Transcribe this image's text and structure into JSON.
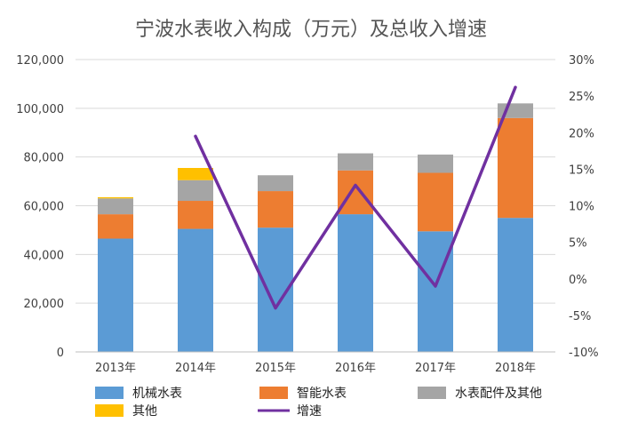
{
  "chart_data": {
    "type": "bar",
    "title": "宁波水表收入构成（万元）及总收入增速",
    "categories": [
      "2013年",
      "2014年",
      "2015年",
      "2016年",
      "2017年",
      "2018年"
    ],
    "series": [
      {
        "name": "机械水表",
        "kind": "stacked-bar",
        "axis": "left",
        "color": "#5B9BD5",
        "values": [
          46500,
          50500,
          51000,
          56500,
          49500,
          55000
        ]
      },
      {
        "name": "智能水表",
        "kind": "stacked-bar",
        "axis": "left",
        "color": "#ED7D31",
        "values": [
          10000,
          11500,
          15000,
          18000,
          24000,
          41000
        ]
      },
      {
        "name": "水表配件及其他",
        "kind": "stacked-bar",
        "axis": "left",
        "color": "#A5A5A5",
        "values": [
          6500,
          8500,
          6500,
          7000,
          7500,
          6000
        ]
      },
      {
        "name": "其他",
        "kind": "stacked-bar",
        "axis": "left",
        "color": "#FFC000",
        "values": [
          500,
          5000,
          0,
          0,
          0,
          0
        ]
      },
      {
        "name": "增速",
        "kind": "line",
        "axis": "right",
        "color": "#7030A0",
        "values": [
          null,
          19.5,
          -4,
          12.8,
          -1,
          26.2
        ]
      }
    ],
    "y_left": {
      "min": 0,
      "max": 120000,
      "step": 20000,
      "tick_labels": [
        "0",
        "20,000",
        "40,000",
        "60,000",
        "80,000",
        "100,000",
        "120,000"
      ]
    },
    "y_right": {
      "min": -10,
      "max": 30,
      "step": 5,
      "tick_labels": [
        "-10%",
        "-5%",
        "0%",
        "5%",
        "10%",
        "15%",
        "20%",
        "25%",
        "30%"
      ]
    },
    "grid": true,
    "legend_position": "bottom"
  }
}
